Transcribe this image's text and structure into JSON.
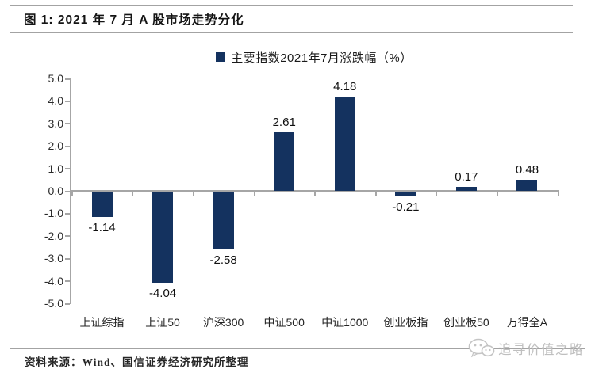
{
  "figure": {
    "title": "图 1: 2021 年 7 月 A 股市场走势分化",
    "source": "资料来源：Wind、国信证券经济研究所整理",
    "watermark": {
      "icon": "wechat-chat-bubbles-icon",
      "text": "追寻价值之路"
    }
  },
  "colors": {
    "bar": "#14325f",
    "axis": "#a6a6a6",
    "rule": "#a3a3a3",
    "watermark": "#bfbfbf"
  },
  "chart_data": {
    "type": "bar",
    "title": "主要指数2021年7月涨跌幅（%）",
    "legend": {
      "label": "主要指数2021年7月涨跌幅（%）",
      "color": "#14325f",
      "position": "top-center"
    },
    "categories": [
      "上证综指",
      "上证50",
      "沪深300",
      "中证500",
      "中证1000",
      "创业板指",
      "创业板50",
      "万得全A"
    ],
    "values": [
      -1.14,
      -4.04,
      -2.58,
      2.61,
      4.18,
      -0.21,
      0.17,
      0.48
    ],
    "value_labels": [
      "-1.14",
      "-4.04",
      "-2.58",
      "2.61",
      "4.18",
      "-0.21",
      "0.17",
      "0.48"
    ],
    "xlabel": "",
    "ylabel": "",
    "ylim": [
      -5.0,
      5.0
    ],
    "ytick_step": 1.0,
    "ytick_labels": [
      "5.0",
      "4.0",
      "3.0",
      "2.0",
      "1.0",
      "0.0",
      "-1.0",
      "-2.0",
      "-3.0",
      "-4.0",
      "-5.0"
    ],
    "grid": false
  }
}
